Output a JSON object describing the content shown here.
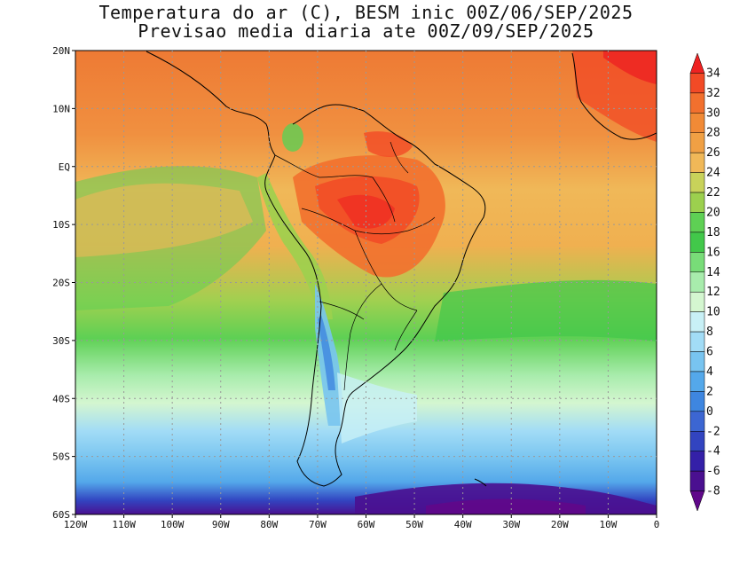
{
  "title_line1": "Temperatura do ar (C), BESM inic 00Z/06/SEP/2025",
  "title_line2": "Previsao media diaria ate 00Z/09/SEP/2025",
  "lat_labels": [
    "20N",
    "10N",
    "EQ",
    "10S",
    "20S",
    "30S",
    "40S",
    "50S",
    "60S"
  ],
  "lon_labels": [
    "120W",
    "110W",
    "100W",
    "90W",
    "80W",
    "70W",
    "60W",
    "50W",
    "40W",
    "30W",
    "20W",
    "10W",
    "0"
  ],
  "colorbar": {
    "values": [
      34,
      32,
      30,
      28,
      26,
      24,
      22,
      20,
      18,
      16,
      14,
      12,
      10,
      8,
      6,
      4,
      2,
      0,
      -2,
      -4,
      -6,
      -8
    ],
    "colors": [
      "#ee2222",
      "#f24a26",
      "#f2702e",
      "#f18a36",
      "#f0a044",
      "#f0b858",
      "#c8d25a",
      "#9cd04e",
      "#5ed054",
      "#42c84a",
      "#78dc78",
      "#a8ecac",
      "#d4f6d0",
      "#c8f0f6",
      "#a2dcf6",
      "#78c4f0",
      "#54a8ea",
      "#3e86e0",
      "#3c66d2",
      "#3244c0",
      "#3420a8",
      "#4a1090",
      "#60088a"
    ]
  }
}
